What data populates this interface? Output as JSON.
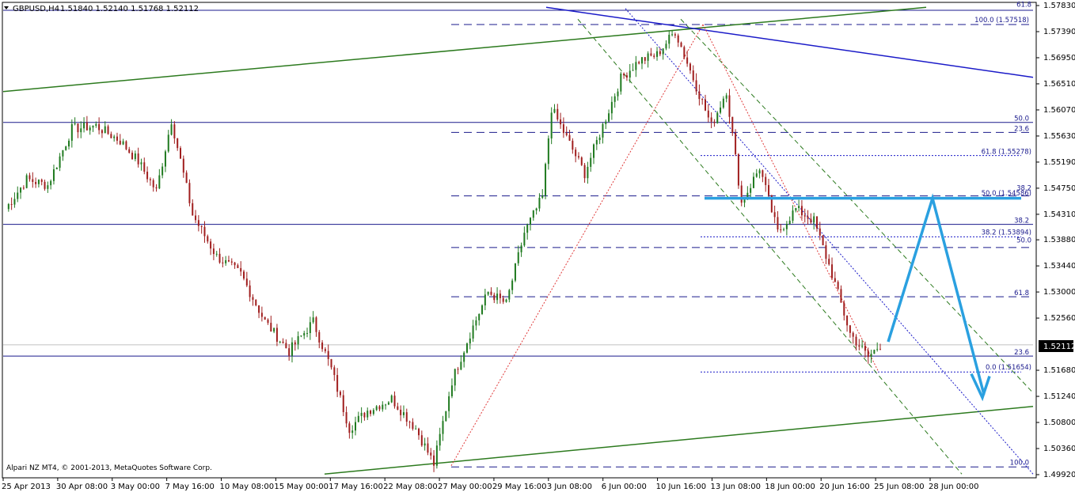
{
  "header": {
    "symbol_label": "GBPUSD,H4",
    "ohlc": "1.51840 1.52140 1.51768 1.52112"
  },
  "footer": {
    "copyright": "Alpari NZ MT4, © 2001-2013, MetaQuotes Software Corp."
  },
  "colors": {
    "bull": "#1f7a1f",
    "bear": "#a01e1e",
    "channel": "#2c7a1e",
    "downtrend": "#1a1ac8",
    "fib": "#1a1a8c",
    "annotation": "#2aa0e0",
    "zigzag": "#e03a3a"
  },
  "chart_data": {
    "type": "candlestick",
    "timeframe": "H4",
    "ylim": [
      1.4992,
      1.5783
    ],
    "price_ticks": [
      "1.57830",
      "1.57390",
      "1.56950",
      "1.56510",
      "1.56070",
      "1.55630",
      "1.55190",
      "1.54750",
      "1.54310",
      "1.53880",
      "1.53440",
      "1.53000",
      "1.52560",
      "1.52112",
      "1.51680",
      "1.51240",
      "1.50800",
      "1.50360",
      "1.49920"
    ],
    "current_price": "1.52112",
    "time_ticks": [
      "25 Apr 2013",
      "30 Apr 08:00",
      "3 May 00:00",
      "7 May 16:00",
      "10 May 08:00",
      "15 May 00:00",
      "17 May 16:00",
      "22 May 08:00",
      "27 May 00:00",
      "29 May 16:00",
      "3 Jun 08:00",
      "6 Jun 00:00",
      "10 Jun 16:00",
      "13 Jun 08:00",
      "18 Jun 00:00",
      "20 Jun 16:00",
      "25 Jun 08:00",
      "28 Jun 00:00"
    ],
    "close_series": [
      {
        "anchor": 0,
        "close": 1.544
      },
      {
        "anchor": 7,
        "close": 1.549
      },
      {
        "anchor": 14,
        "close": 1.548
      },
      {
        "anchor": 22,
        "close": 1.5575
      },
      {
        "anchor": 30,
        "close": 1.558
      },
      {
        "anchor": 38,
        "close": 1.5555
      },
      {
        "anchor": 44,
        "close": 1.552
      },
      {
        "anchor": 50,
        "close": 1.547
      },
      {
        "anchor": 55,
        "close": 1.559
      },
      {
        "anchor": 62,
        "close": 1.543
      },
      {
        "anchor": 70,
        "close": 1.536
      },
      {
        "anchor": 78,
        "close": 1.533
      },
      {
        "anchor": 86,
        "close": 1.525
      },
      {
        "anchor": 94,
        "close": 1.52
      },
      {
        "anchor": 102,
        "close": 1.525
      },
      {
        "anchor": 108,
        "close": 1.517
      },
      {
        "anchor": 114,
        "close": 1.507
      },
      {
        "anchor": 120,
        "close": 1.51
      },
      {
        "anchor": 128,
        "close": 1.512
      },
      {
        "anchor": 136,
        "close": 1.507
      },
      {
        "anchor": 142,
        "close": 1.501
      },
      {
        "anchor": 148,
        "close": 1.515
      },
      {
        "anchor": 154,
        "close": 1.523
      },
      {
        "anchor": 160,
        "close": 1.53
      },
      {
        "anchor": 166,
        "close": 1.528
      },
      {
        "anchor": 172,
        "close": 1.54
      },
      {
        "anchor": 178,
        "close": 1.546
      },
      {
        "anchor": 181,
        "close": 1.561
      },
      {
        "anchor": 186,
        "close": 1.556
      },
      {
        "anchor": 192,
        "close": 1.55
      },
      {
        "anchor": 198,
        "close": 1.558
      },
      {
        "anchor": 204,
        "close": 1.566
      },
      {
        "anchor": 210,
        "close": 1.569
      },
      {
        "anchor": 216,
        "close": 1.57
      },
      {
        "anchor": 222,
        "close": 1.574
      },
      {
        "anchor": 228,
        "close": 1.566
      },
      {
        "anchor": 234,
        "close": 1.558
      },
      {
        "anchor": 239,
        "close": 1.564
      },
      {
        "anchor": 244,
        "close": 1.545
      },
      {
        "anchor": 250,
        "close": 1.551
      },
      {
        "anchor": 256,
        "close": 1.54
      },
      {
        "anchor": 262,
        "close": 1.544
      },
      {
        "anchor": 268,
        "close": 1.542
      },
      {
        "anchor": 274,
        "close": 1.533
      },
      {
        "anchor": 280,
        "close": 1.523
      },
      {
        "anchor": 286,
        "close": 1.519
      },
      {
        "anchor": 290,
        "close": 1.5211
      }
    ],
    "fib_labels_left": [
      "100.0 (1.57518)",
      "50.0",
      "23.6",
      "38.2",
      "61.8",
      "23.6",
      "100.0"
    ],
    "fib_labels_right": [
      "61.8",
      "61.8 (1.55278)",
      "38.2",
      "50.0 (1.54586)",
      "38.2 (1.53894)",
      "50.0",
      "0.0 (1.51654)"
    ]
  }
}
